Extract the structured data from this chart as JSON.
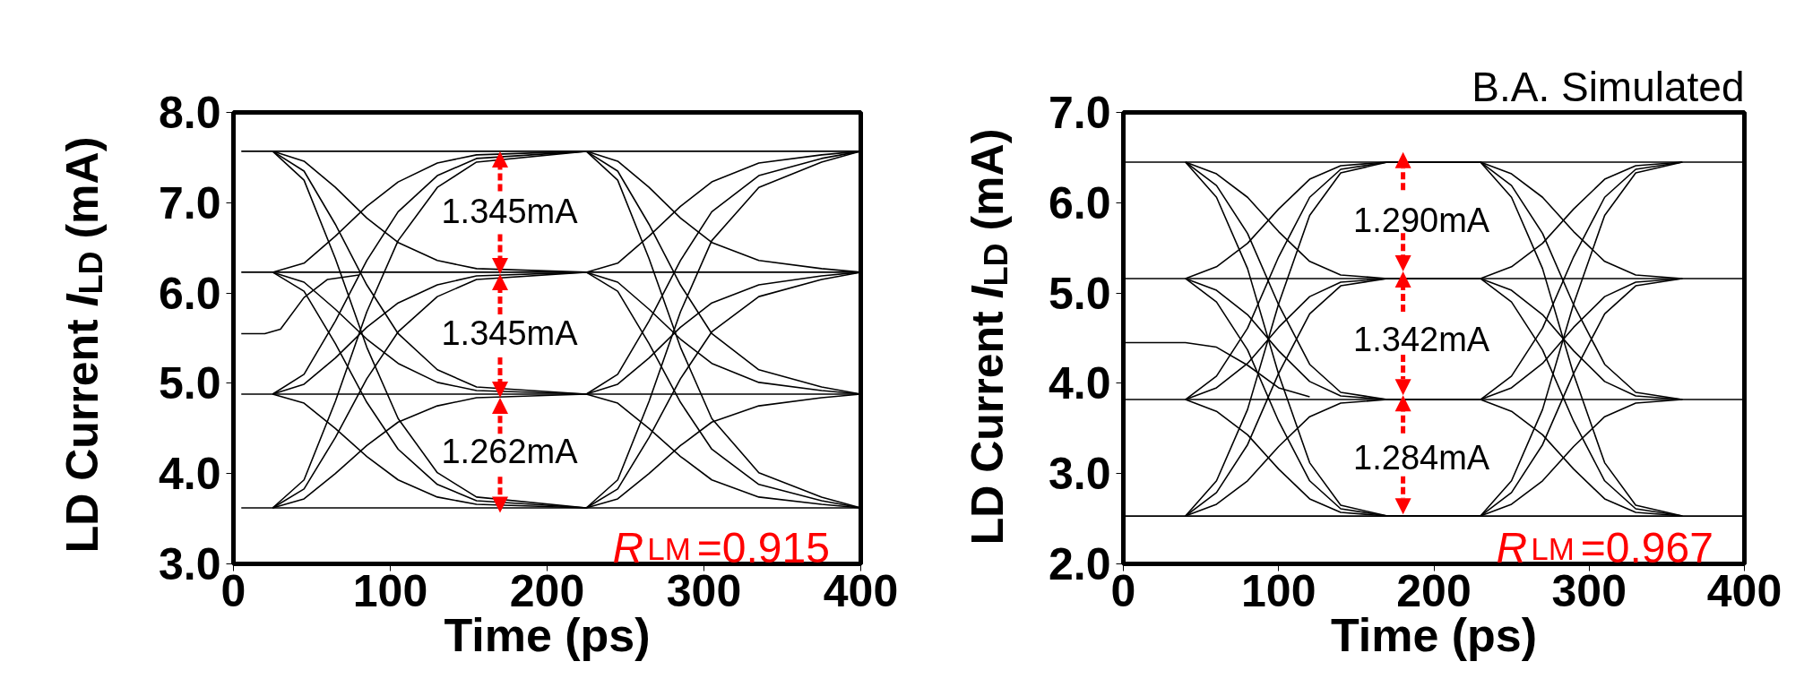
{
  "chart_data": [
    {
      "type": "line",
      "xlabel": "Time (ps)",
      "ylabel": "LD Current I$_{LD}$ (mA)",
      "xlim": [
        0,
        400
      ],
      "xticks": [
        0,
        100,
        200,
        300,
        400
      ],
      "ylim": [
        3,
        8
      ],
      "yticks": [
        {
          "value": 3,
          "label": "3.0"
        },
        {
          "value": 4,
          "label": "4.0"
        },
        {
          "value": 5,
          "label": "5.0"
        },
        {
          "value": 6,
          "label": "6.0"
        },
        {
          "value": 7,
          "label": "7.0"
        },
        {
          "value": 8,
          "label": "8.0"
        }
      ],
      "grid": false,
      "annotations": [
        "1.345mA",
        "1.345mA",
        "1.262mA",
        "R$_{LM}$=0.915"
      ],
      "series": [
        {
          "color": "#000000",
          "x": [
            5,
            400
          ],
          "values": [
            7.57,
            7.57
          ]
        },
        {
          "color": "#000000",
          "x": [
            5,
            400
          ],
          "values": [
            6.23,
            6.23
          ]
        },
        {
          "color": "#000000",
          "x": [
            5,
            400
          ],
          "values": [
            4.88,
            4.88
          ]
        },
        {
          "color": "#000000",
          "x": [
            5,
            400
          ],
          "values": [
            3.62,
            3.62
          ]
        },
        {
          "color": "#000000",
          "x": [
            5,
            20,
            30,
            45,
            60,
            80
          ],
          "values": [
            5.55,
            5.55,
            5.6,
            5.95,
            6.15,
            6.2
          ]
        },
        {
          "color": "#000000",
          "x": [
            25,
            45,
            65,
            85,
            105,
            130,
            155,
            225,
            245,
            265,
            285,
            305,
            335,
            375,
            400
          ],
          "values": [
            7.57,
            7.35,
            6.76,
            6.09,
            5.55,
            5.15,
            4.96,
            4.88,
            4.99,
            5.28,
            5.62,
            5.89,
            6.09,
            6.19,
            6.23
          ]
        },
        {
          "color": "#000000",
          "x": [
            25,
            45,
            65,
            85,
            105,
            130,
            155,
            225,
            245,
            265,
            285,
            305,
            335,
            375,
            400
          ],
          "values": [
            7.57,
            7.25,
            6.38,
            5.4,
            4.61,
            4.01,
            3.74,
            3.62,
            3.72,
            4.0,
            4.31,
            4.57,
            4.75,
            4.84,
            4.88
          ]
        },
        {
          "color": "#000000",
          "x": [
            25,
            45,
            65,
            85,
            105,
            130,
            155,
            225,
            245,
            265,
            285,
            305,
            335,
            375,
            400
          ],
          "values": [
            7.57,
            7.46,
            7.17,
            6.83,
            6.56,
            6.36,
            6.27,
            6.23,
            6.02,
            5.44,
            4.79,
            4.27,
            3.88,
            3.7,
            3.62
          ]
        },
        {
          "color": "#000000",
          "x": [
            25,
            45,
            65,
            85,
            105,
            130,
            155,
            225,
            245,
            265,
            285,
            305,
            335,
            375,
            400
          ],
          "values": [
            6.23,
            6.02,
            5.44,
            4.79,
            4.27,
            3.88,
            3.7,
            3.62,
            3.93,
            4.8,
            5.79,
            6.58,
            7.17,
            7.45,
            7.57
          ]
        },
        {
          "color": "#000000",
          "x": [
            25,
            45,
            65,
            85,
            105,
            130,
            155,
            225,
            245,
            265,
            285,
            305,
            335,
            375,
            400
          ],
          "values": [
            6.23,
            6.33,
            6.63,
            6.96,
            7.23,
            7.44,
            7.53,
            7.57,
            7.35,
            6.76,
            6.09,
            5.55,
            5.15,
            4.96,
            4.88
          ]
        },
        {
          "color": "#000000",
          "x": [
            25,
            45,
            65,
            85,
            105,
            130,
            155,
            225,
            245,
            265,
            285,
            305,
            335,
            375,
            400
          ],
          "values": [
            6.23,
            6.12,
            5.82,
            5.49,
            5.22,
            5.01,
            4.92,
            4.88,
            4.78,
            4.5,
            4.19,
            3.93,
            3.74,
            3.66,
            3.62
          ]
        },
        {
          "color": "#000000",
          "x": [
            25,
            45,
            65,
            85,
            105,
            130,
            155,
            225,
            245,
            265,
            285,
            305,
            335,
            375,
            400
          ],
          "values": [
            4.88,
            4.99,
            5.28,
            5.62,
            5.89,
            6.09,
            6.19,
            6.23,
            6.33,
            6.63,
            6.96,
            7.23,
            7.44,
            7.53,
            7.57
          ]
        },
        {
          "color": "#000000",
          "x": [
            25,
            45,
            65,
            85,
            105,
            130,
            155,
            225,
            245,
            265,
            285,
            305,
            335,
            375,
            400
          ],
          "values": [
            4.88,
            4.78,
            4.5,
            4.19,
            3.93,
            3.74,
            3.66,
            3.62,
            3.83,
            4.4,
            5.05,
            5.57,
            5.96,
            6.15,
            6.23
          ]
        },
        {
          "color": "#000000",
          "x": [
            25,
            45,
            65,
            85,
            105,
            130,
            155,
            225,
            245,
            265,
            285,
            305,
            335,
            375,
            400
          ],
          "values": [
            4.88,
            5.1,
            5.69,
            6.36,
            6.9,
            7.3,
            7.49,
            7.57,
            7.25,
            6.38,
            5.4,
            4.61,
            4.01,
            3.74,
            3.62
          ]
        },
        {
          "color": "#000000",
          "x": [
            25,
            45,
            65,
            85,
            105,
            130,
            155,
            225,
            245,
            265,
            285,
            305,
            335,
            375,
            400
          ],
          "values": [
            3.62,
            3.72,
            4.0,
            4.31,
            4.57,
            4.75,
            4.84,
            4.88,
            5.1,
            5.69,
            6.36,
            6.9,
            7.3,
            7.49,
            7.57
          ]
        },
        {
          "color": "#000000",
          "x": [
            25,
            45,
            65,
            85,
            105,
            130,
            155,
            225,
            245,
            265,
            285,
            305,
            335,
            375,
            400
          ],
          "values": [
            3.62,
            3.93,
            4.8,
            5.79,
            6.58,
            7.17,
            7.45,
            7.57,
            7.46,
            7.17,
            6.83,
            6.56,
            6.36,
            6.27,
            6.23
          ]
        },
        {
          "color": "#000000",
          "x": [
            25,
            45,
            65,
            85,
            105,
            130,
            155,
            225,
            245,
            265,
            285,
            305,
            335,
            375,
            400
          ],
          "values": [
            3.62,
            3.83,
            4.4,
            5.05,
            5.57,
            5.96,
            6.15,
            6.23,
            6.12,
            5.82,
            5.49,
            5.22,
            5.01,
            4.92,
            4.88
          ]
        }
      ]
    },
    {
      "type": "line",
      "title": "B.A. Simulated",
      "xlabel": "Time (ps)",
      "ylabel": "LD Current I$_{LD}$ (mA)",
      "xlim": [
        0,
        400
      ],
      "xticks": [
        0,
        100,
        200,
        300,
        400
      ],
      "ylim": [
        2,
        7
      ],
      "yticks": [
        {
          "value": 2,
          "label": "2.0"
        },
        {
          "value": 3,
          "label": "3.0"
        },
        {
          "value": 4,
          "label": "4.0"
        },
        {
          "value": 5,
          "label": "5.0"
        },
        {
          "value": 6,
          "label": "6.0"
        },
        {
          "value": 7,
          "label": "7.0"
        }
      ],
      "grid": false,
      "annotations": [
        "1.290mA",
        "1.342mA",
        "1.284mA",
        "R$_{LM}$=0.967"
      ],
      "series": [
        {
          "color": "#000000",
          "x": [
            0,
            400
          ],
          "values": [
            6.45,
            6.45
          ]
        },
        {
          "color": "#000000",
          "x": [
            0,
            400
          ],
          "values": [
            5.16,
            5.16
          ]
        },
        {
          "color": "#000000",
          "x": [
            0,
            400
          ],
          "values": [
            3.82,
            3.82
          ]
        },
        {
          "color": "#000000",
          "x": [
            0,
            400
          ],
          "values": [
            2.53,
            2.53
          ]
        },
        {
          "color": "#000000",
          "x": [
            0,
            40,
            60,
            80,
            100,
            120
          ],
          "values": [
            4.45,
            4.45,
            4.4,
            4.2,
            3.95,
            3.85
          ]
        },
        {
          "color": "#000000",
          "x": [
            40,
            60,
            80,
            100,
            120,
            140,
            170,
            230,
            250,
            270,
            290,
            310,
            330,
            360
          ],
          "values": [
            6.45,
            6.19,
            5.66,
            4.87,
            4.21,
            3.9,
            3.82,
            3.82,
            3.95,
            4.22,
            4.62,
            4.96,
            5.12,
            5.16
          ]
        },
        {
          "color": "#000000",
          "x": [
            40,
            60,
            80,
            100,
            120,
            140,
            170,
            230,
            250,
            270,
            290,
            310,
            330,
            360
          ],
          "values": [
            6.45,
            6.06,
            5.27,
            4.1,
            3.12,
            2.65,
            2.53,
            2.53,
            2.66,
            2.92,
            3.3,
            3.63,
            3.78,
            3.82
          ]
        },
        {
          "color": "#000000",
          "x": [
            40,
            60,
            80,
            100,
            120,
            140,
            170,
            230,
            250,
            270,
            290,
            310,
            330,
            360
          ],
          "values": [
            6.45,
            6.32,
            6.06,
            5.68,
            5.35,
            5.2,
            5.16,
            5.16,
            4.9,
            4.37,
            3.58,
            2.92,
            2.61,
            2.53
          ]
        },
        {
          "color": "#000000",
          "x": [
            40,
            60,
            80,
            100,
            120,
            140,
            170,
            230,
            250,
            270,
            290,
            310,
            330,
            360
          ],
          "values": [
            5.16,
            4.9,
            4.37,
            3.58,
            2.92,
            2.61,
            2.53,
            2.53,
            2.92,
            3.71,
            4.88,
            5.86,
            6.33,
            6.45
          ]
        },
        {
          "color": "#000000",
          "x": [
            40,
            60,
            80,
            100,
            120,
            140,
            170,
            230,
            250,
            270,
            290,
            310,
            330,
            360
          ],
          "values": [
            5.16,
            5.29,
            5.55,
            5.93,
            6.26,
            6.41,
            6.45,
            6.45,
            6.19,
            5.66,
            4.87,
            4.21,
            3.9,
            3.82
          ]
        },
        {
          "color": "#000000",
          "x": [
            40,
            60,
            80,
            100,
            120,
            140,
            170,
            230,
            250,
            270,
            290,
            310,
            330,
            360
          ],
          "values": [
            5.16,
            5.03,
            4.76,
            4.36,
            4.02,
            3.86,
            3.82,
            3.82,
            3.69,
            3.43,
            3.05,
            2.72,
            2.57,
            2.53
          ]
        },
        {
          "color": "#000000",
          "x": [
            40,
            60,
            80,
            100,
            120,
            140,
            170,
            230,
            250,
            270,
            290,
            310,
            330,
            360
          ],
          "values": [
            3.82,
            3.95,
            4.22,
            4.62,
            4.96,
            5.12,
            5.16,
            5.16,
            5.29,
            5.55,
            5.93,
            6.26,
            6.41,
            6.45
          ]
        },
        {
          "color": "#000000",
          "x": [
            40,
            60,
            80,
            100,
            120,
            140,
            170,
            230,
            250,
            270,
            290,
            310,
            330,
            360
          ],
          "values": [
            3.82,
            3.69,
            3.43,
            3.05,
            2.72,
            2.57,
            2.53,
            2.53,
            2.79,
            3.32,
            4.11,
            4.77,
            5.08,
            5.16
          ]
        },
        {
          "color": "#000000",
          "x": [
            40,
            60,
            80,
            100,
            120,
            140,
            170,
            230,
            250,
            270,
            290,
            310,
            330,
            360
          ],
          "values": [
            3.82,
            4.08,
            4.61,
            5.4,
            6.06,
            6.37,
            6.45,
            6.45,
            6.06,
            5.27,
            4.1,
            3.12,
            2.65,
            2.53
          ]
        },
        {
          "color": "#000000",
          "x": [
            40,
            60,
            80,
            100,
            120,
            140,
            170,
            230,
            250,
            270,
            290,
            310,
            330,
            360
          ],
          "values": [
            2.53,
            2.66,
            2.92,
            3.3,
            3.63,
            3.78,
            3.82,
            3.82,
            4.08,
            4.61,
            5.4,
            6.06,
            6.37,
            6.45
          ]
        },
        {
          "color": "#000000",
          "x": [
            40,
            60,
            80,
            100,
            120,
            140,
            170,
            230,
            250,
            270,
            290,
            310,
            330,
            360
          ],
          "values": [
            2.53,
            2.92,
            3.71,
            4.88,
            5.86,
            6.33,
            6.45,
            6.45,
            6.32,
            6.06,
            5.68,
            5.35,
            5.2,
            5.16
          ]
        },
        {
          "color": "#000000",
          "x": [
            40,
            60,
            80,
            100,
            120,
            140,
            170,
            230,
            250,
            270,
            290,
            310,
            330,
            360
          ],
          "values": [
            2.53,
            2.79,
            3.32,
            4.11,
            4.77,
            5.08,
            5.16,
            5.16,
            5.03,
            4.76,
            4.36,
            4.02,
            3.86,
            3.82
          ]
        }
      ]
    }
  ]
}
